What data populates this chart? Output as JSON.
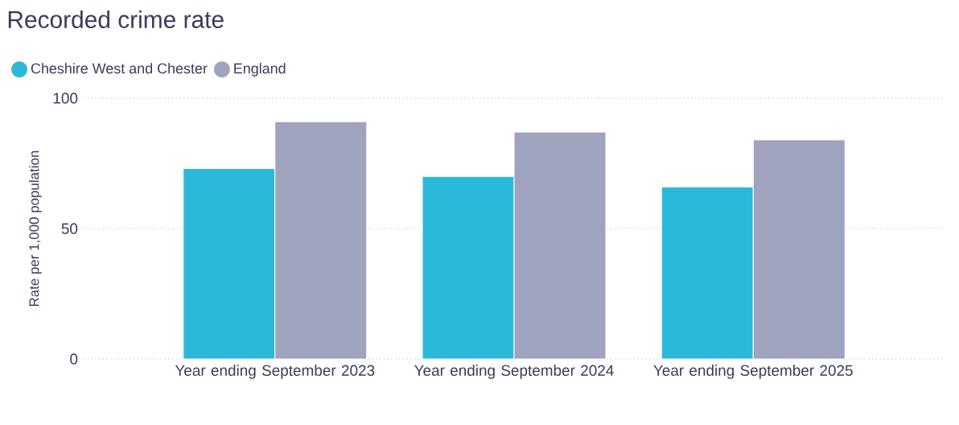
{
  "chart_data": {
    "type": "bar",
    "title": "Recorded crime rate",
    "ylabel": "Rate per 1,000 population",
    "categories": [
      "Year ending September 2023",
      "Year ending September 2024",
      "Year ending September 2025"
    ],
    "series": [
      {
        "name": "Cheshire West and Chester",
        "color": "#2bb9d9",
        "values": [
          73,
          70,
          66
        ]
      },
      {
        "name": "England",
        "color": "#9fa3bd",
        "values": [
          91,
          87,
          84
        ]
      }
    ],
    "ylim": [
      0,
      100
    ],
    "yticks": [
      0,
      50,
      100
    ],
    "grid": "y",
    "legend": "top left"
  }
}
